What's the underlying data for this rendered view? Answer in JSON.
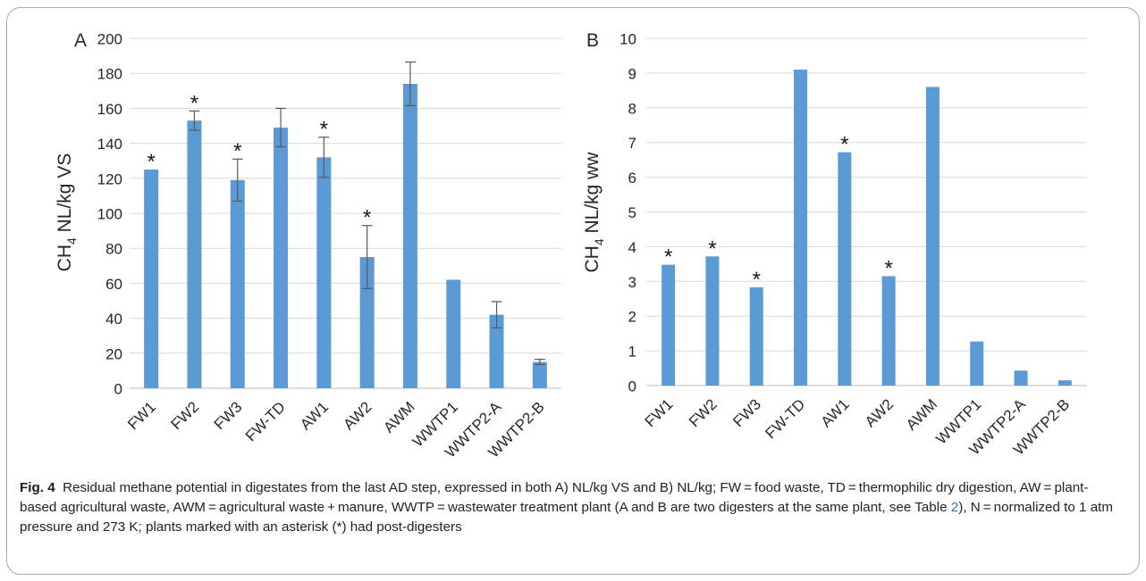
{
  "colors": {
    "bar": "#5b9bd5",
    "grid": "#d9d9d9",
    "axis": "#bfbfbf",
    "text": "#262626",
    "error": "#595959",
    "link": "#3a6fb8"
  },
  "chart_data": [
    {
      "type": "bar",
      "panel_label": "A",
      "ylabel_main": "CH",
      "ylabel_sub": "4",
      "ylabel_rest": " NL/kg VS",
      "categories": [
        "FW1",
        "FW2",
        "FW3",
        "FW-TD",
        "AW1",
        "AW2",
        "AWM",
        "WWTP1",
        "WWTP2-A",
        "WWTP2-B"
      ],
      "values": [
        125,
        153,
        119,
        149,
        132,
        75,
        174,
        62,
        42,
        15
      ],
      "error_bars": [
        null,
        5.5,
        12,
        11,
        11.5,
        18,
        12.5,
        null,
        7.5,
        1.5
      ],
      "asterisk": [
        true,
        true,
        true,
        false,
        true,
        true,
        false,
        false,
        false,
        false
      ],
      "asterisk_symbol": "*",
      "ylim": [
        0,
        200
      ],
      "yticks": [
        "0",
        "20",
        "40",
        "60",
        "80",
        "100",
        "120",
        "140",
        "160",
        "180",
        "200"
      ],
      "grid": true
    },
    {
      "type": "bar",
      "panel_label": "B",
      "ylabel_main": "CH",
      "ylabel_sub": "4",
      "ylabel_rest": " NL/kg ww",
      "categories": [
        "FW1",
        "FW2",
        "FW3",
        "FW-TD",
        "AW1",
        "AW2",
        "AWM",
        "WWTP1",
        "WWTP2-A",
        "WWTP2-B"
      ],
      "values": [
        3.48,
        3.72,
        2.83,
        9.1,
        6.72,
        3.15,
        8.6,
        1.27,
        0.43,
        0.15
      ],
      "asterisk": [
        true,
        true,
        true,
        false,
        true,
        true,
        false,
        false,
        false,
        false
      ],
      "asterisk_symbol": "*",
      "ylim": [
        0,
        10
      ],
      "yticks": [
        "0",
        "1",
        "2",
        "3",
        "4",
        "5",
        "6",
        "7",
        "8",
        "9",
        "10"
      ],
      "grid": true
    }
  ],
  "caption": {
    "label": "Fig. 4",
    "text_before_ref": "Residual methane potential in digestates from the last AD step, expressed in both A) NL/kg VS and B) NL/kg; FW = food waste, TD = thermophilic dry digestion, AW = plant-based agricultural waste, AWM = agricultural waste + manure, WWTP = wastewater treatment plant (A and B are two digesters at the same plant, see Table ",
    "ref": "2",
    "text_after_ref": "), N = normalized to 1 atm pressure and 273 K; plants marked with an asterisk (*) had post-digesters"
  }
}
